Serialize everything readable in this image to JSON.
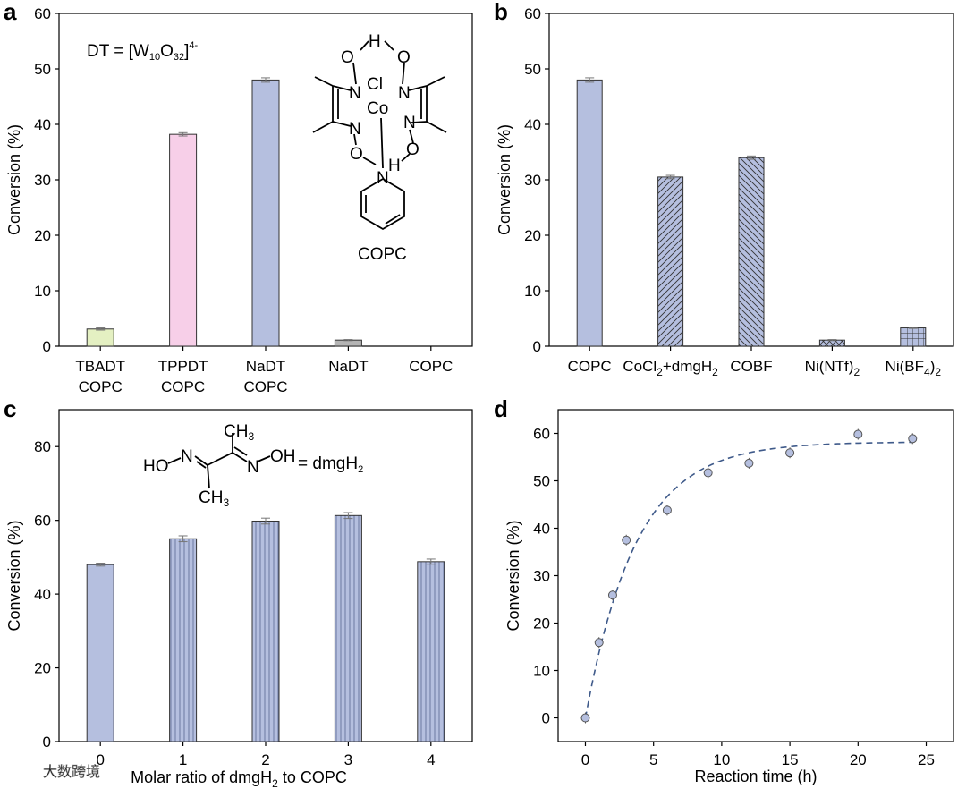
{
  "chart_data": [
    {
      "panel": "a",
      "type": "bar",
      "ylabel": "Conversion (%)",
      "ylim": [
        0,
        60
      ],
      "yticks": [
        0,
        10,
        20,
        30,
        40,
        50,
        60
      ],
      "categories": [
        [
          "TBADT",
          "COPC"
        ],
        [
          "TPPDT",
          "COPC"
        ],
        [
          "NaDT",
          "COPC"
        ],
        [
          "NaDT"
        ],
        [
          "COPC"
        ]
      ],
      "values": [
        3.1,
        38.2,
        48.0,
        1.1,
        0
      ],
      "errors": [
        0.2,
        0.3,
        0.4,
        0.1,
        0
      ],
      "colors": [
        "#e4f0c2",
        "#f7cfe8",
        "#b5bfdf",
        "#b4b4b4",
        "#ffffff"
      ],
      "annotation": {
        "prefix": "DT = [W",
        "sub1": "10",
        "mid": "O",
        "sub2": "32",
        "sup": "4-",
        "close": "]"
      },
      "structure": {
        "name": "COPC",
        "atoms": {
          "cl": "Cl",
          "co": "Co",
          "h": "H",
          "o": "O",
          "n": "N"
        }
      }
    },
    {
      "panel": "b",
      "type": "bar",
      "ylabel": "Conversion (%)",
      "ylim": [
        0,
        60
      ],
      "yticks": [
        0,
        10,
        20,
        30,
        40,
        50,
        60
      ],
      "categories": [
        {
          "pre": "COPC",
          "sub": "",
          "post": ""
        },
        {
          "pre": "CoCl",
          "sub": "2",
          "post": "+dmgH",
          "sub2": "2"
        },
        {
          "pre": "COBF",
          "sub": "",
          "post": ""
        },
        {
          "pre": "Ni(NTf)",
          "sub": "2",
          "post": ""
        },
        {
          "pre": "Ni(BF",
          "sub": "4",
          "post": ")",
          "sub2": "2"
        }
      ],
      "values": [
        48.0,
        30.5,
        34.0,
        1.1,
        3.3
      ],
      "errors": [
        0.4,
        0.3,
        0.3,
        0.1,
        0.1
      ],
      "patterns": [
        "solid",
        "diag-right",
        "diag-left",
        "cross",
        "grid"
      ]
    },
    {
      "panel": "c",
      "type": "bar",
      "xlabel": {
        "pre": "Molar ratio of dmgH",
        "sub": "2",
        "post": " to COPC"
      },
      "ylabel": "Conversion (%)",
      "ylim": [
        0,
        90
      ],
      "yticks": [
        0,
        20,
        40,
        60,
        80
      ],
      "categories": [
        "0",
        "1",
        "2",
        "3",
        "4"
      ],
      "values": [
        48.0,
        55.0,
        59.8,
        61.3,
        48.8
      ],
      "errors": [
        0.4,
        0.8,
        0.8,
        0.8,
        0.7
      ],
      "structure": {
        "ch3a": "CH",
        "ch3b": "CH",
        "three": "3",
        "ho": "HO",
        "oh": "OH",
        "n": "N",
        "eq": "= dmgH",
        "two": "2"
      }
    },
    {
      "panel": "d",
      "type": "scatter",
      "xlabel": "Reaction time (h)",
      "ylabel": "Conversion (%)",
      "xlim": [
        -2,
        27
      ],
      "ylim": [
        -5,
        65
      ],
      "xticks": [
        0,
        5,
        10,
        15,
        20,
        25
      ],
      "yticks": [
        0,
        10,
        20,
        30,
        40,
        50,
        60
      ],
      "x": [
        0,
        1,
        2,
        3,
        6,
        9,
        12,
        15,
        20,
        24
      ],
      "y": [
        0,
        15.9,
        25.9,
        37.5,
        43.8,
        51.7,
        53.7,
        55.9,
        59.8,
        58.9
      ],
      "fit": {
        "type": "exponential",
        "a": 58.2,
        "k": 0.27
      }
    }
  ],
  "watermark": "大数跨境"
}
